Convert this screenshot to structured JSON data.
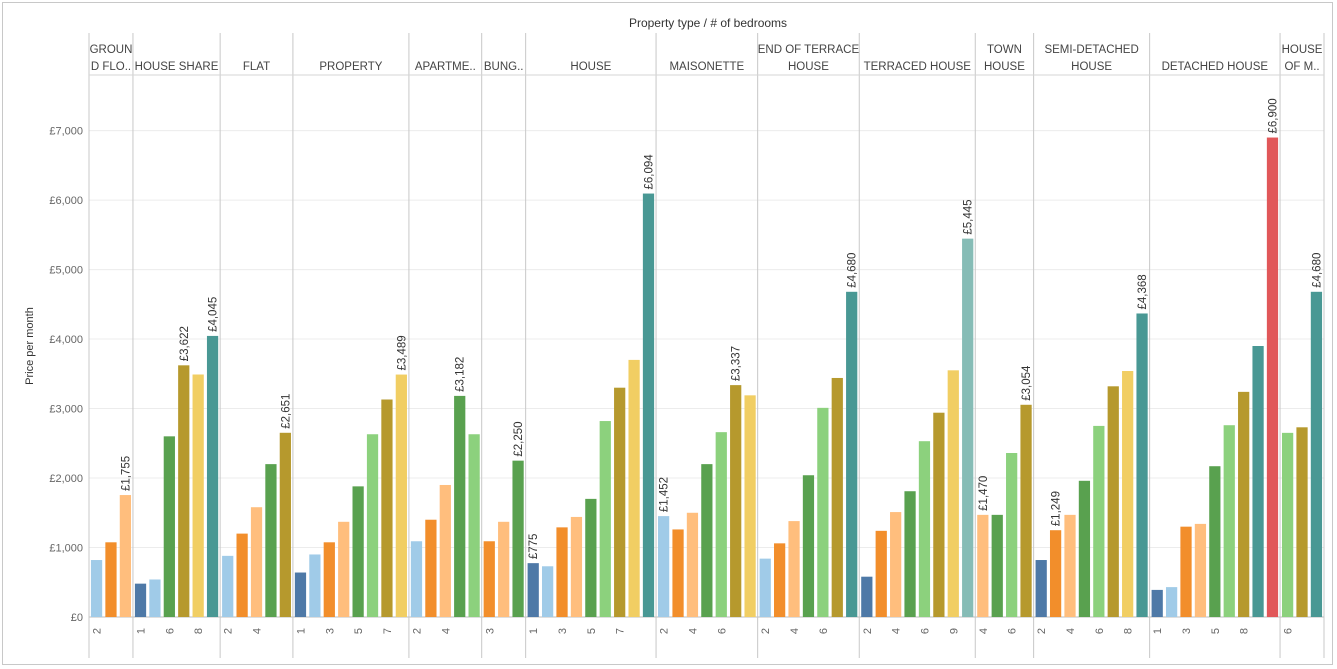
{
  "chart_data": {
    "type": "bar",
    "title": "Property type  /  # of bedrooms",
    "ylabel": "Price per month",
    "xlabel": "",
    "ylim": [
      0,
      7800
    ],
    "yticks": [
      0,
      1000,
      2000,
      3000,
      4000,
      5000,
      6000,
      7000
    ],
    "ytick_labels": [
      "£0",
      "£1,000",
      "£2,000",
      "£3,000",
      "£4,000",
      "£5,000",
      "£6,000",
      "£7,000"
    ],
    "bedroom_colors": {
      "1": "#4e79a7",
      "2": "#a0cbe8",
      "3": "#f28e2b",
      "4": "#ffbe7d",
      "5": "#59a14f",
      "6": "#8cd17d",
      "7": "#b6992d",
      "8": "#f1ce63",
      "9": "#499894",
      "10": "#86bcb6",
      "11": "#e15759"
    },
    "groups": [
      {
        "name": [
          "GROUN",
          "D FLO.."
        ],
        "bars": [
          {
            "cat": "2",
            "value": 820
          },
          {
            "cat": "3",
            "value": 1075
          },
          {
            "cat": "4",
            "value": 1755,
            "label": "£1,755"
          }
        ],
        "ticks": [
          "2"
        ]
      },
      {
        "name": [
          "HOUSE SHARE"
        ],
        "bars": [
          {
            "cat": "1",
            "value": 480
          },
          {
            "cat": "2",
            "value": 540
          },
          {
            "cat": "5",
            "value": 2600
          },
          {
            "cat": "7",
            "value": 3622,
            "label": "£3,622"
          },
          {
            "cat": "8",
            "value": 3490
          },
          {
            "cat": "9",
            "value": 4045,
            "label": "£4,045"
          }
        ],
        "ticks": [
          "1",
          "6",
          "8"
        ]
      },
      {
        "name": [
          "FLAT"
        ],
        "bars": [
          {
            "cat": "2",
            "value": 880
          },
          {
            "cat": "3",
            "value": 1200
          },
          {
            "cat": "4",
            "value": 1580
          },
          {
            "cat": "5",
            "value": 2200
          },
          {
            "cat": "7",
            "value": 2651,
            "label": "£2,651"
          }
        ],
        "ticks": [
          "2",
          "4"
        ]
      },
      {
        "name": [
          "PROPERTY"
        ],
        "bars": [
          {
            "cat": "1",
            "value": 640
          },
          {
            "cat": "2",
            "value": 900
          },
          {
            "cat": "3",
            "value": 1075
          },
          {
            "cat": "4",
            "value": 1370
          },
          {
            "cat": "5",
            "value": 1880
          },
          {
            "cat": "6",
            "value": 2630
          },
          {
            "cat": "7",
            "value": 3130
          },
          {
            "cat": "8",
            "value": 3489,
            "label": "£3,489"
          }
        ],
        "ticks": [
          "1",
          "3",
          "5",
          "7"
        ]
      },
      {
        "name": [
          "APARTME.."
        ],
        "bars": [
          {
            "cat": "2",
            "value": 1090
          },
          {
            "cat": "3",
            "value": 1400
          },
          {
            "cat": "4",
            "value": 1900
          },
          {
            "cat": "5",
            "value": 3182,
            "label": "£3,182"
          },
          {
            "cat": "6",
            "value": 2630
          }
        ],
        "ticks": [
          "2",
          "4"
        ]
      },
      {
        "name": [
          "BUNG.."
        ],
        "bars": [
          {
            "cat": "3",
            "value": 1090
          },
          {
            "cat": "4",
            "value": 1370
          },
          {
            "cat": "5",
            "value": 2250,
            "label": "£2,250"
          }
        ],
        "ticks": [
          "3"
        ]
      },
      {
        "name": [
          "HOUSE"
        ],
        "bars": [
          {
            "cat": "1",
            "value": 775,
            "label": "£775"
          },
          {
            "cat": "2",
            "value": 730
          },
          {
            "cat": "3",
            "value": 1290
          },
          {
            "cat": "4",
            "value": 1440
          },
          {
            "cat": "5",
            "value": 1700
          },
          {
            "cat": "6",
            "value": 2820
          },
          {
            "cat": "7",
            "value": 3300
          },
          {
            "cat": "8",
            "value": 3700
          },
          {
            "cat": "9",
            "value": 6094,
            "label": "£6,094"
          }
        ],
        "ticks": [
          "1",
          "3",
          "5",
          "7"
        ]
      },
      {
        "name": [
          "MAISONETTE"
        ],
        "bars": [
          {
            "cat": "2",
            "value": 1452,
            "label": "£1,452"
          },
          {
            "cat": "3",
            "value": 1260
          },
          {
            "cat": "4",
            "value": 1500
          },
          {
            "cat": "5",
            "value": 2200
          },
          {
            "cat": "6",
            "value": 2660
          },
          {
            "cat": "7",
            "value": 3337,
            "label": "£3,337"
          },
          {
            "cat": "8",
            "value": 3190
          }
        ],
        "ticks": [
          "2",
          "4",
          "6"
        ]
      },
      {
        "name": [
          "END OF TERRACE",
          "HOUSE"
        ],
        "bars": [
          {
            "cat": "2",
            "value": 840
          },
          {
            "cat": "3",
            "value": 1060
          },
          {
            "cat": "4",
            "value": 1380
          },
          {
            "cat": "5",
            "value": 2040
          },
          {
            "cat": "6",
            "value": 3010
          },
          {
            "cat": "7",
            "value": 3440
          },
          {
            "cat": "9",
            "value": 4680,
            "label": "£4,680"
          }
        ],
        "ticks": [
          "2",
          "4",
          "6"
        ]
      },
      {
        "name": [
          "TERRACED HOUSE"
        ],
        "bars": [
          {
            "cat": "1",
            "value": 580
          },
          {
            "cat": "3",
            "value": 1240
          },
          {
            "cat": "4",
            "value": 1510
          },
          {
            "cat": "5",
            "value": 1810
          },
          {
            "cat": "6",
            "value": 2530
          },
          {
            "cat": "7",
            "value": 2940
          },
          {
            "cat": "8",
            "value": 3550
          },
          {
            "cat": "10",
            "value": 5445,
            "label": "£5,445"
          }
        ],
        "ticks": [
          "2",
          "4",
          "6",
          "9"
        ]
      },
      {
        "name": [
          "TOWN",
          "HOUSE"
        ],
        "bars": [
          {
            "cat": "4",
            "value": 1470,
            "label": "£1,470"
          },
          {
            "cat": "5",
            "value": 1470
          },
          {
            "cat": "6",
            "value": 2360
          },
          {
            "cat": "7",
            "value": 3054,
            "label": "£3,054"
          }
        ],
        "ticks": [
          "4",
          "6"
        ]
      },
      {
        "name": [
          "SEMI-DETACHED",
          "HOUSE"
        ],
        "bars": [
          {
            "cat": "1",
            "value": 820
          },
          {
            "cat": "3",
            "value": 1249,
            "label": "£1,249"
          },
          {
            "cat": "4",
            "value": 1470
          },
          {
            "cat": "5",
            "value": 1960
          },
          {
            "cat": "6",
            "value": 2750
          },
          {
            "cat": "7",
            "value": 3320
          },
          {
            "cat": "8",
            "value": 3540
          },
          {
            "cat": "9",
            "value": 4368,
            "label": "£4,368"
          }
        ],
        "ticks": [
          "2",
          "4",
          "6",
          "8"
        ]
      },
      {
        "name": [
          "DETACHED HOUSE"
        ],
        "bars": [
          {
            "cat": "1",
            "value": 390
          },
          {
            "cat": "2",
            "value": 430
          },
          {
            "cat": "3",
            "value": 1300
          },
          {
            "cat": "4",
            "value": 1340
          },
          {
            "cat": "5",
            "value": 2170
          },
          {
            "cat": "6",
            "value": 2760
          },
          {
            "cat": "7",
            "value": 3240
          },
          {
            "cat": "9",
            "value": 3900
          },
          {
            "cat": "11",
            "value": 6900,
            "label": "£6,900"
          }
        ],
        "ticks": [
          "1",
          "3",
          "5",
          "8"
        ]
      },
      {
        "name": [
          "HOUSE",
          "OF M.."
        ],
        "bars": [
          {
            "cat": "6",
            "value": 2650
          },
          {
            "cat": "7",
            "value": 2730
          },
          {
            "cat": "9",
            "value": 4680,
            "label": "£4,680"
          }
        ],
        "ticks": [
          "6"
        ]
      }
    ]
  }
}
